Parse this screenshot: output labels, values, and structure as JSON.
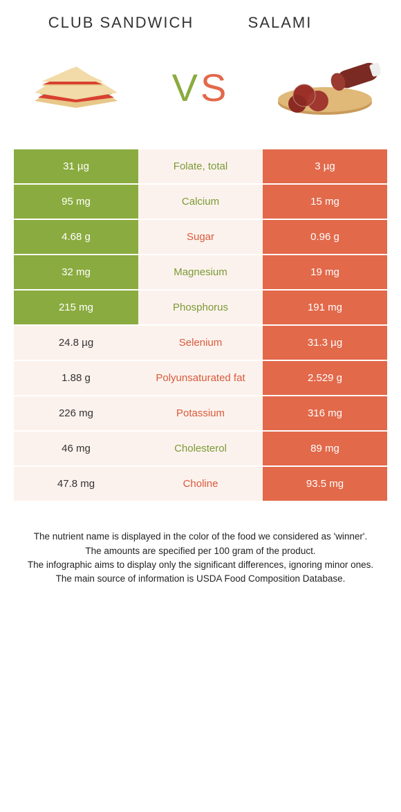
{
  "header": {
    "left_title": "Club sandwich",
    "right_title": "Salami",
    "vs": {
      "v": "V",
      "s": "S"
    }
  },
  "colors": {
    "green": "#8aab3f",
    "orange": "#e2694a",
    "beige": "#fcf2ed",
    "label_green": "#7a9a35",
    "label_orange": "#d85a3c"
  },
  "table": {
    "rows": [
      {
        "left": "31 µg",
        "label": "Folate, total",
        "right": "3 µg",
        "left_bg": "green",
        "right_bg": "orange",
        "label_color": "green"
      },
      {
        "left": "95 mg",
        "label": "Calcium",
        "right": "15 mg",
        "left_bg": "green",
        "right_bg": "orange",
        "label_color": "green"
      },
      {
        "left": "4.68 g",
        "label": "Sugar",
        "right": "0.96 g",
        "left_bg": "green",
        "right_bg": "orange",
        "label_color": "orange"
      },
      {
        "left": "32 mg",
        "label": "Magnesium",
        "right": "19 mg",
        "left_bg": "green",
        "right_bg": "orange",
        "label_color": "green"
      },
      {
        "left": "215 mg",
        "label": "Phosphorus",
        "right": "191 mg",
        "left_bg": "green",
        "right_bg": "orange",
        "label_color": "green"
      },
      {
        "left": "24.8 µg",
        "label": "Selenium",
        "right": "31.3 µg",
        "left_bg": "beige",
        "right_bg": "orange",
        "label_color": "orange"
      },
      {
        "left": "1.88 g",
        "label": "Polyunsaturated fat",
        "right": "2.529 g",
        "left_bg": "beige",
        "right_bg": "orange",
        "label_color": "orange"
      },
      {
        "left": "226 mg",
        "label": "Potassium",
        "right": "316 mg",
        "left_bg": "beige",
        "right_bg": "orange",
        "label_color": "orange"
      },
      {
        "left": "46 mg",
        "label": "Cholesterol",
        "right": "89 mg",
        "left_bg": "beige",
        "right_bg": "orange",
        "label_color": "green"
      },
      {
        "left": "47.8 mg",
        "label": "Choline",
        "right": "93.5 mg",
        "left_bg": "beige",
        "right_bg": "orange",
        "label_color": "orange"
      }
    ]
  },
  "footer": {
    "line1": "The nutrient name is displayed in the color of the food we considered as 'winner'.",
    "line2": "The amounts are specified per 100 gram of the product.",
    "line3": "The infographic aims to display only the significant differences, ignoring minor ones.",
    "line4": "The main source of information is USDA Food Composition Database."
  }
}
